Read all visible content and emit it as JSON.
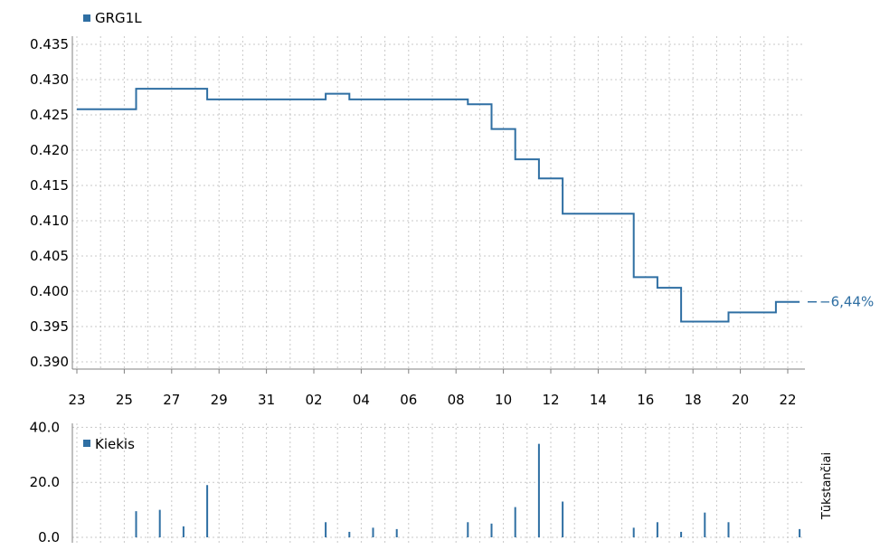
{
  "colors": {
    "series": "#2f6fa3",
    "grid": "#c8c8c8",
    "axis": "#808080",
    "text": "#000000"
  },
  "chart_data": [
    {
      "type": "line",
      "style": "step",
      "legend": "GRG1L",
      "legend_position": "top-left",
      "grid": true,
      "ylim": [
        0.388,
        0.436
      ],
      "yticks": [
        "0.435",
        "0.430",
        "0.425",
        "0.420",
        "0.415",
        "0.410",
        "0.405",
        "0.400",
        "0.395",
        "0.390"
      ],
      "ytick_values": [
        0.435,
        0.43,
        0.425,
        0.42,
        0.415,
        0.41,
        0.405,
        0.4,
        0.395,
        0.39
      ],
      "xticks": [
        "23",
        "25",
        "27",
        "29",
        "31",
        "02",
        "04",
        "06",
        "08",
        "10",
        "12",
        "14",
        "16",
        "18",
        "20",
        "22"
      ],
      "change_label": "−6,44%",
      "x": [
        0,
        2.5,
        5.5,
        10.5,
        11.5,
        16.5,
        17.5,
        18.5,
        19.5,
        20.5,
        23.5,
        24.5,
        25.5,
        27.5,
        28.5,
        29.5,
        30.5
      ],
      "values": [
        0.4258,
        0.4287,
        0.4272,
        0.428,
        0.4272,
        0.4265,
        0.423,
        0.4187,
        0.416,
        0.411,
        0.402,
        0.4005,
        0.3957,
        0.397,
        0.397,
        0.3985,
        0.3985
      ]
    },
    {
      "type": "bar",
      "legend": "Kiekis",
      "legend_position": "top-left",
      "ylabel": "Tūkstančiai",
      "ylim": [
        0,
        40
      ],
      "yticks": [
        "40.0",
        "20.0",
        "0.0"
      ],
      "ytick_values": [
        40,
        20,
        0
      ],
      "x": [
        2.5,
        3.5,
        4.5,
        5.5,
        10.5,
        11.5,
        12.5,
        13.5,
        16.5,
        17.5,
        18.5,
        19.5,
        20.5,
        23.5,
        24.5,
        25.5,
        26.5,
        27.5,
        30.5
      ],
      "values": [
        9.5,
        10,
        4,
        19,
        5.5,
        2,
        3.5,
        3,
        5.5,
        5,
        11,
        34,
        13,
        3.5,
        5.5,
        2,
        9,
        5.5,
        3
      ]
    }
  ]
}
